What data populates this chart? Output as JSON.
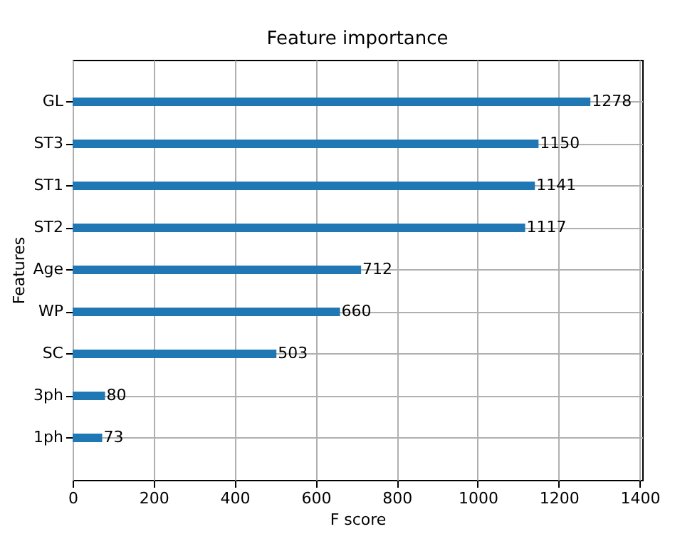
{
  "chart_data": {
    "type": "bar",
    "orientation": "horizontal",
    "title": "Feature importance",
    "xlabel": "F score",
    "ylabel": "Features",
    "categories": [
      "GL",
      "ST3",
      "ST1",
      "ST2",
      "Age",
      "WP",
      "SC",
      "3ph",
      "1ph"
    ],
    "values": [
      1278,
      1150,
      1141,
      1117,
      712,
      660,
      503,
      80,
      73
    ],
    "color": "#1f77b4",
    "xlim": [
      0,
      1406
    ],
    "xticks": [
      0,
      200,
      400,
      600,
      800,
      1000,
      1200,
      1400
    ],
    "grid": true,
    "data_labels": true
  }
}
